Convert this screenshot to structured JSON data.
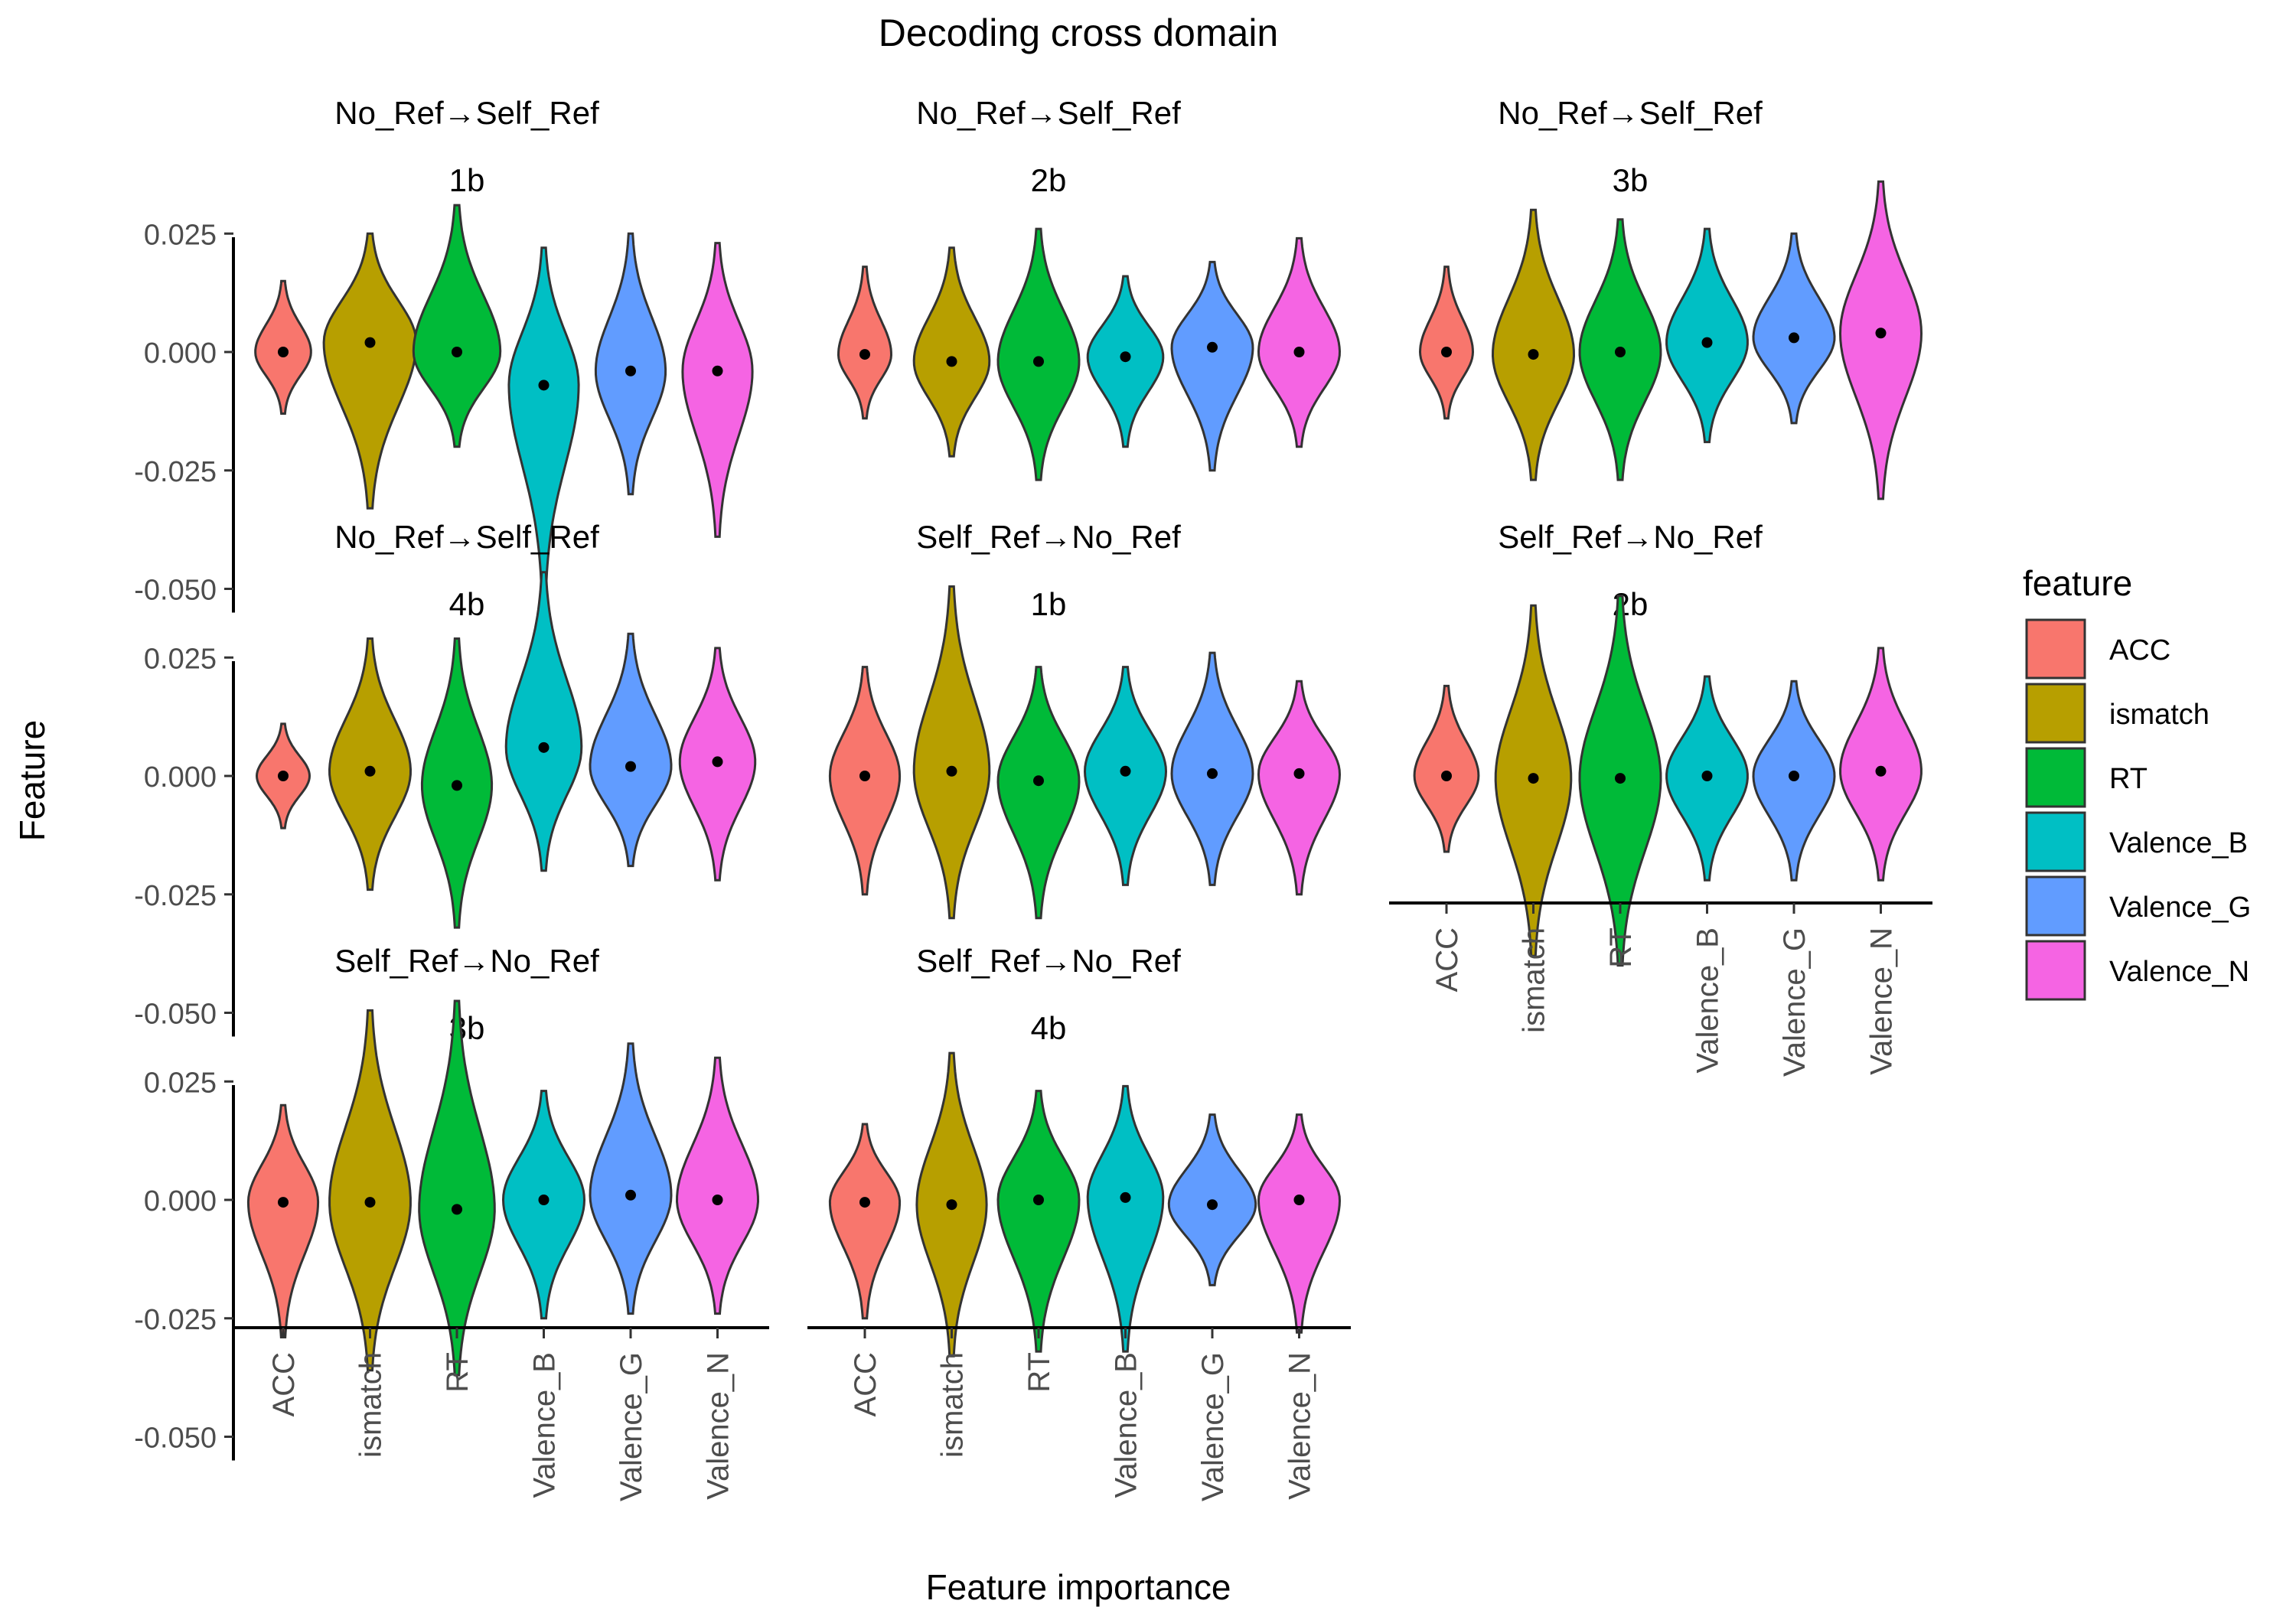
{
  "chart_data": {
    "type": "violin",
    "title": "Decoding cross domain",
    "xlabel": "Feature importance",
    "ylabel": "Feature",
    "legend": {
      "title": "feature",
      "placement": "right",
      "items": [
        {
          "name": "ACC",
          "color": "#F8766D"
        },
        {
          "name": "ismatch",
          "color": "#B79F00"
        },
        {
          "name": "RT",
          "color": "#00BA38"
        },
        {
          "name": "Valence_B",
          "color": "#00BFC4"
        },
        {
          "name": "Valence_G",
          "color": "#619CFF"
        },
        {
          "name": "Valence_N",
          "color": "#F564E3"
        }
      ]
    },
    "categories": [
      "ACC",
      "ismatch",
      "RT",
      "Valence_B",
      "Valence_G",
      "Valence_N"
    ],
    "y_ticks": [
      {
        "value": -0.05,
        "label": "-0.050"
      },
      {
        "value": -0.025,
        "label": "-0.025"
      },
      {
        "value": 0,
        "label": "0.000"
      },
      {
        "value": 0.025,
        "label": "0.025"
      }
    ],
    "ylim": [
      -0.055,
      0.045
    ],
    "panels": [
      {
        "strip1": "No_Ref→Self_Ref",
        "strip2": "1b",
        "violins": [
          {
            "min": -0.013,
            "max": 0.015,
            "mean": 0.0,
            "width": 0.0095
          },
          {
            "min": -0.033,
            "max": 0.025,
            "mean": 0.002,
            "width": 0.016
          },
          {
            "min": -0.02,
            "max": 0.031,
            "mean": 0.0,
            "width": 0.015
          },
          {
            "min": -0.051,
            "max": 0.022,
            "mean": -0.007,
            "width": 0.012
          },
          {
            "min": -0.03,
            "max": 0.025,
            "mean": -0.004,
            "width": 0.012
          },
          {
            "min": -0.039,
            "max": 0.023,
            "mean": -0.004,
            "width": 0.012
          }
        ]
      },
      {
        "strip1": "No_Ref→Self_Ref",
        "strip2": "2b",
        "violins": [
          {
            "min": -0.014,
            "max": 0.018,
            "mean": -0.0005,
            "width": 0.009
          },
          {
            "min": -0.022,
            "max": 0.022,
            "mean": -0.002,
            "width": 0.013
          },
          {
            "min": -0.027,
            "max": 0.026,
            "mean": -0.002,
            "width": 0.014
          },
          {
            "min": -0.02,
            "max": 0.016,
            "mean": -0.001,
            "width": 0.013
          },
          {
            "min": -0.025,
            "max": 0.019,
            "mean": 0.001,
            "width": 0.014
          },
          {
            "min": -0.02,
            "max": 0.024,
            "mean": 0.0,
            "width": 0.014
          }
        ]
      },
      {
        "strip1": "No_Ref→Self_Ref",
        "strip2": "3b",
        "violins": [
          {
            "min": -0.014,
            "max": 0.018,
            "mean": 0.0,
            "width": 0.009
          },
          {
            "min": -0.027,
            "max": 0.03,
            "mean": -0.0005,
            "width": 0.014
          },
          {
            "min": -0.027,
            "max": 0.028,
            "mean": 0.0,
            "width": 0.014
          },
          {
            "min": -0.019,
            "max": 0.026,
            "mean": 0.002,
            "width": 0.014
          },
          {
            "min": -0.015,
            "max": 0.025,
            "mean": 0.003,
            "width": 0.014
          },
          {
            "min": -0.031,
            "max": 0.036,
            "mean": 0.004,
            "width": 0.014
          }
        ]
      },
      {
        "strip1": "No_Ref→Self_Ref",
        "strip2": "4b",
        "violins": [
          {
            "min": -0.011,
            "max": 0.011,
            "mean": 0.0,
            "width": 0.009
          },
          {
            "min": -0.024,
            "max": 0.029,
            "mean": 0.001,
            "width": 0.014
          },
          {
            "min": -0.032,
            "max": 0.029,
            "mean": -0.002,
            "width": 0.012
          },
          {
            "min": -0.02,
            "max": 0.043,
            "mean": 0.006,
            "width": 0.013
          },
          {
            "min": -0.019,
            "max": 0.03,
            "mean": 0.002,
            "width": 0.014
          },
          {
            "min": -0.022,
            "max": 0.027,
            "mean": 0.003,
            "width": 0.013
          }
        ]
      },
      {
        "strip1": "Self_Ref→No_Ref",
        "strip2": "1b",
        "violins": [
          {
            "min": -0.025,
            "max": 0.023,
            "mean": 0.0,
            "width": 0.012
          },
          {
            "min": -0.03,
            "max": 0.04,
            "mean": 0.001,
            "width": 0.013
          },
          {
            "min": -0.03,
            "max": 0.023,
            "mean": -0.001,
            "width": 0.014
          },
          {
            "min": -0.023,
            "max": 0.023,
            "mean": 0.001,
            "width": 0.014
          },
          {
            "min": -0.023,
            "max": 0.026,
            "mean": 0.0005,
            "width": 0.014
          },
          {
            "min": -0.025,
            "max": 0.02,
            "mean": 0.0005,
            "width": 0.014
          }
        ]
      },
      {
        "strip1": "Self_Ref→No_Ref",
        "strip2": "2b",
        "violins": [
          {
            "min": -0.016,
            "max": 0.019,
            "mean": 0.0,
            "width": 0.011
          },
          {
            "min": -0.038,
            "max": 0.036,
            "mean": -0.0005,
            "width": 0.013
          },
          {
            "min": -0.04,
            "max": 0.038,
            "mean": -0.0005,
            "width": 0.014
          },
          {
            "min": -0.022,
            "max": 0.021,
            "mean": 0.0,
            "width": 0.014
          },
          {
            "min": -0.022,
            "max": 0.02,
            "mean": 0.0,
            "width": 0.014
          },
          {
            "min": -0.022,
            "max": 0.027,
            "mean": 0.001,
            "width": 0.014
          }
        ]
      },
      {
        "strip1": "Self_Ref→No_Ref",
        "strip2": "3b",
        "violins": [
          {
            "min": -0.029,
            "max": 0.02,
            "mean": -0.0005,
            "width": 0.012
          },
          {
            "min": -0.036,
            "max": 0.04,
            "mean": -0.0005,
            "width": 0.014
          },
          {
            "min": -0.037,
            "max": 0.042,
            "mean": -0.002,
            "width": 0.013
          },
          {
            "min": -0.025,
            "max": 0.023,
            "mean": 0.0,
            "width": 0.014
          },
          {
            "min": -0.024,
            "max": 0.033,
            "mean": 0.001,
            "width": 0.014
          },
          {
            "min": -0.024,
            "max": 0.03,
            "mean": 0.0,
            "width": 0.014
          }
        ]
      },
      {
        "strip1": "Self_Ref→No_Ref",
        "strip2": "4b",
        "violins": [
          {
            "min": -0.025,
            "max": 0.016,
            "mean": -0.0005,
            "width": 0.012
          },
          {
            "min": -0.033,
            "max": 0.031,
            "mean": -0.001,
            "width": 0.012
          },
          {
            "min": -0.032,
            "max": 0.023,
            "mean": 0.0,
            "width": 0.014
          },
          {
            "min": -0.032,
            "max": 0.024,
            "mean": 0.0005,
            "width": 0.013
          },
          {
            "min": -0.018,
            "max": 0.018,
            "mean": -0.001,
            "width": 0.015
          },
          {
            "min": -0.028,
            "max": 0.018,
            "mean": 0.0,
            "width": 0.014
          }
        ]
      }
    ]
  }
}
